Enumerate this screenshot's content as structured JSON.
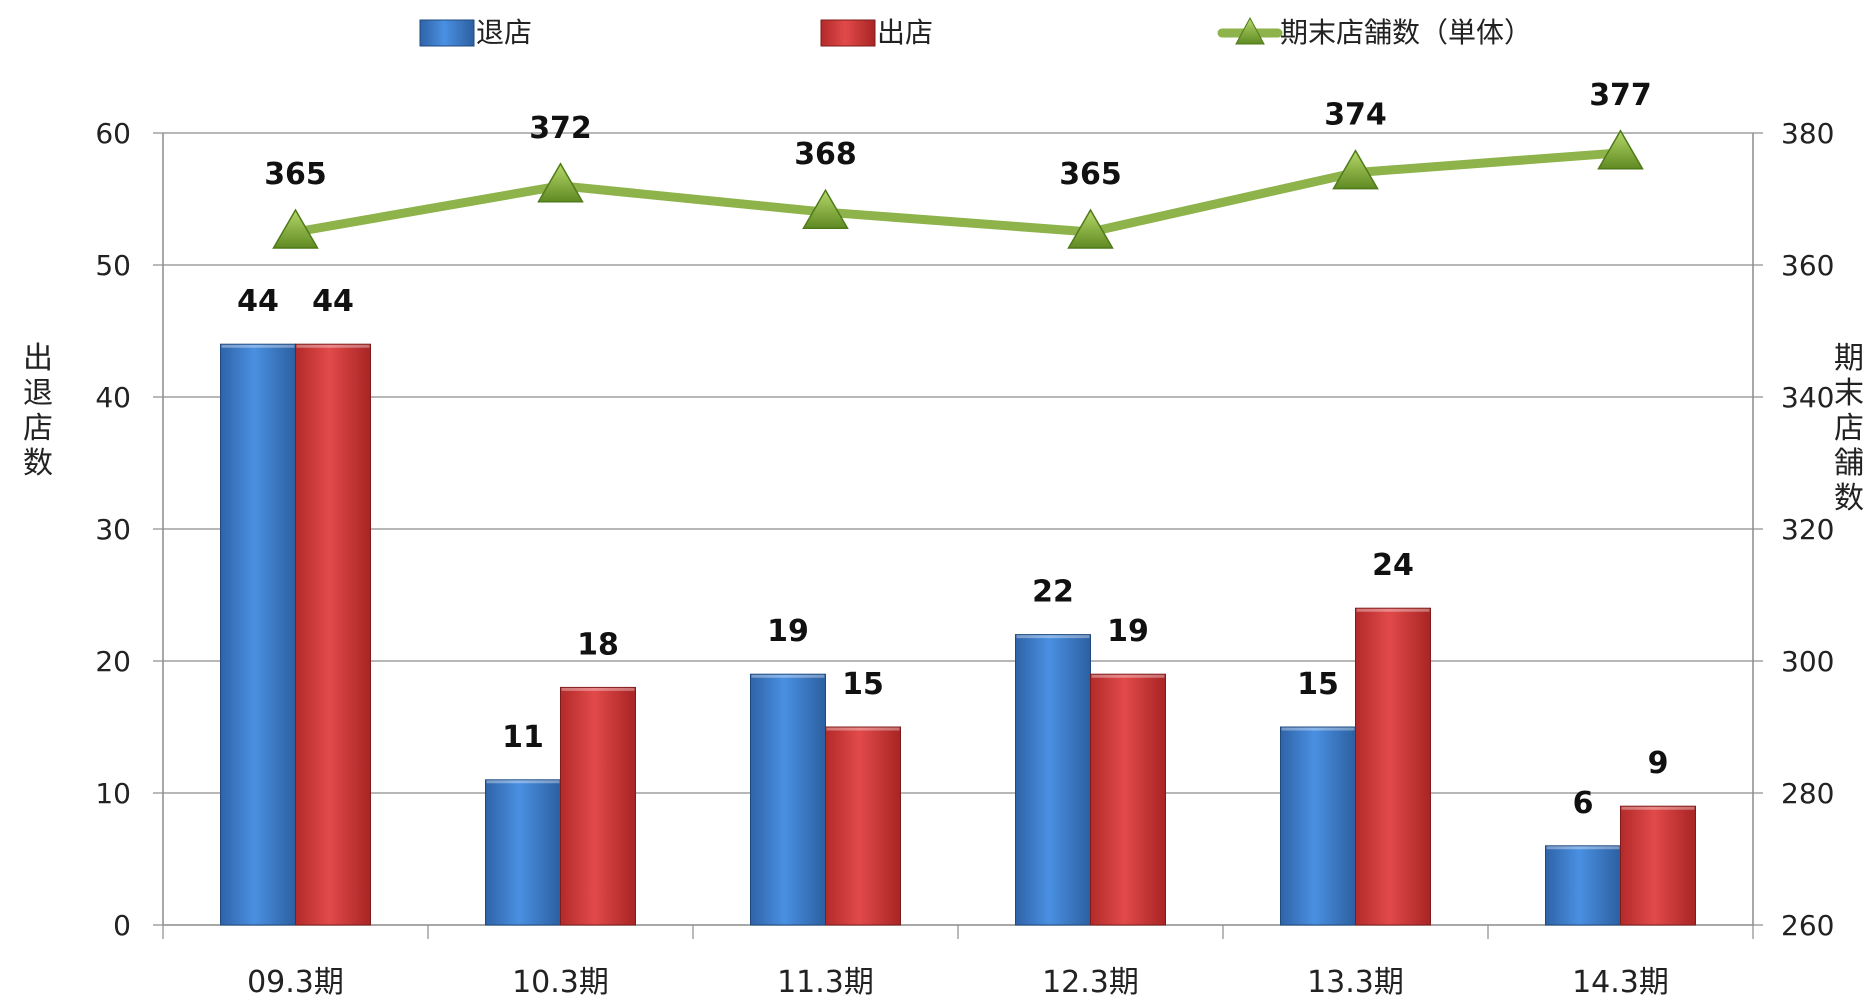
{
  "chart_data": {
    "type": "bar",
    "categories": [
      "09.3期",
      "10.3期",
      "11.3期",
      "12.3期",
      "13.3期",
      "14.3期"
    ],
    "series": [
      {
        "name": "退店",
        "type": "bar",
        "axis": "left",
        "values": [
          44,
          11,
          19,
          22,
          15,
          6
        ],
        "color": "#3b7fd4"
      },
      {
        "name": "出店",
        "type": "bar",
        "axis": "left",
        "values": [
          44,
          18,
          15,
          19,
          24,
          9
        ],
        "color": "#d93a3a"
      },
      {
        "name": "期末店舗数（単体）",
        "type": "line",
        "axis": "right",
        "values": [
          365,
          372,
          368,
          365,
          374,
          377
        ],
        "color": "#8db34a"
      }
    ],
    "ylabel_left": "出退店数",
    "ylabel_right": "期末店舗数",
    "ylim_left": [
      0,
      60
    ],
    "yticks_left": [
      "0",
      "10",
      "20",
      "30",
      "40",
      "50",
      "60"
    ],
    "ylim_right": [
      260,
      380
    ],
    "yticks_right": [
      "260",
      "280",
      "300",
      "320",
      "340",
      "360",
      "380"
    ],
    "legend_position": "top",
    "grid": true
  }
}
